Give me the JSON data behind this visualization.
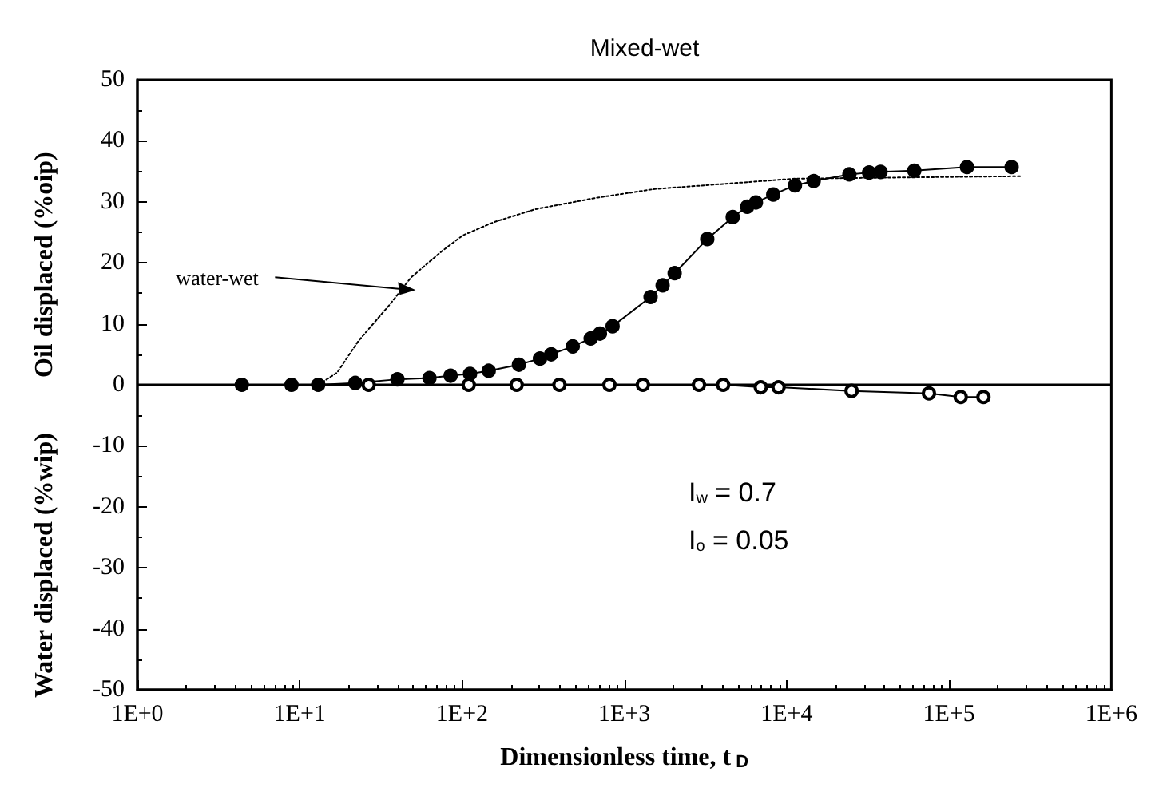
{
  "chart_data": {
    "type": "line",
    "title": "Mixed-wet",
    "xlabel": "Dimensionless time, t$_{D}$",
    "ylabel": "Oil displaced (%oip)",
    "log": "x",
    "xlim": [
      1,
      1000000
    ],
    "xticks": [
      {
        "value": 1,
        "label": "1E+0"
      },
      {
        "value": 10,
        "label": "1E+1"
      },
      {
        "value": 100,
        "label": "1E+2"
      },
      {
        "value": 1000,
        "label": "1E+3"
      },
      {
        "value": 10000,
        "label": "1E+4"
      },
      {
        "value": 100000,
        "label": "1E+5"
      },
      {
        "value": 1000000,
        "label": "1E+6"
      }
    ],
    "yticks": [
      -50,
      -40,
      -30,
      -20,
      -10,
      0,
      10,
      20,
      30,
      40,
      50
    ],
    "ylim": [
      -50,
      50
    ],
    "grid": false,
    "series": [
      {
        "marker": "circle",
        "line_style": "solid",
        "color": "#000000",
        "x": [
          4.4,
          8.9,
          13,
          22,
          40,
          63,
          85,
          112,
          146,
          224,
          302,
          354,
          481,
          620,
          707,
          846,
          1450,
          1720,
          2040,
          3240,
          4650,
          5710,
          6460,
          8260,
          11240,
          14660,
          24330,
          32200,
          37840,
          61100,
          129000,
          243000
        ],
        "values": [
          0,
          0,
          0,
          0.3,
          0.9,
          1.1,
          1.5,
          1.8,
          2.3,
          3.3,
          4.3,
          5.0,
          6.3,
          7.6,
          8.4,
          9.6,
          14.4,
          16.3,
          18.3,
          23.9,
          27.5,
          29.2,
          29.9,
          31.2,
          32.7,
          33.4,
          34.5,
          34.8,
          34.9,
          35.1,
          35.7,
          35.7
        ]
      },
      {
        "marker": "circle",
        "line_style": "solid",
        "color": "#000000",
        "x": [
          26.6,
          110,
          217,
          398,
          809,
          1300,
          2880,
          4060,
          6920,
          8910,
          25100,
          75200,
          118000,
          163000
        ],
        "values": [
          0,
          0,
          0,
          0,
          0,
          0,
          0,
          0,
          -0.4,
          -0.4,
          -1.0,
          -1.4,
          -2.0,
          -2.0
        ]
      },
      {
        "marker": "none",
        "line_style": "dotted",
        "color": "#000000",
        "x": [
          13,
          17,
          23,
          36,
          48.5,
          75,
          101,
          158,
          284,
          686,
          1540,
          11200,
          276000
        ],
        "values": [
          0,
          2.0,
          7.2,
          13.2,
          17.6,
          21.9,
          24.5,
          26.7,
          28.8,
          30.7,
          32.1,
          33.8,
          34.2
        ]
      }
    ],
    "ref_lines": [
      {
        "axis": "y",
        "value": 0,
        "color": "#000000",
        "line_style": "solid"
      }
    ],
    "annotations": [
      {
        "text": "water-wet",
        "x": 47,
        "y": 15.8
      },
      "Water displaced (%wip)",
      "I$_{w}$ = 0.7",
      "I$_{o}$ = 0.05"
    ]
  }
}
